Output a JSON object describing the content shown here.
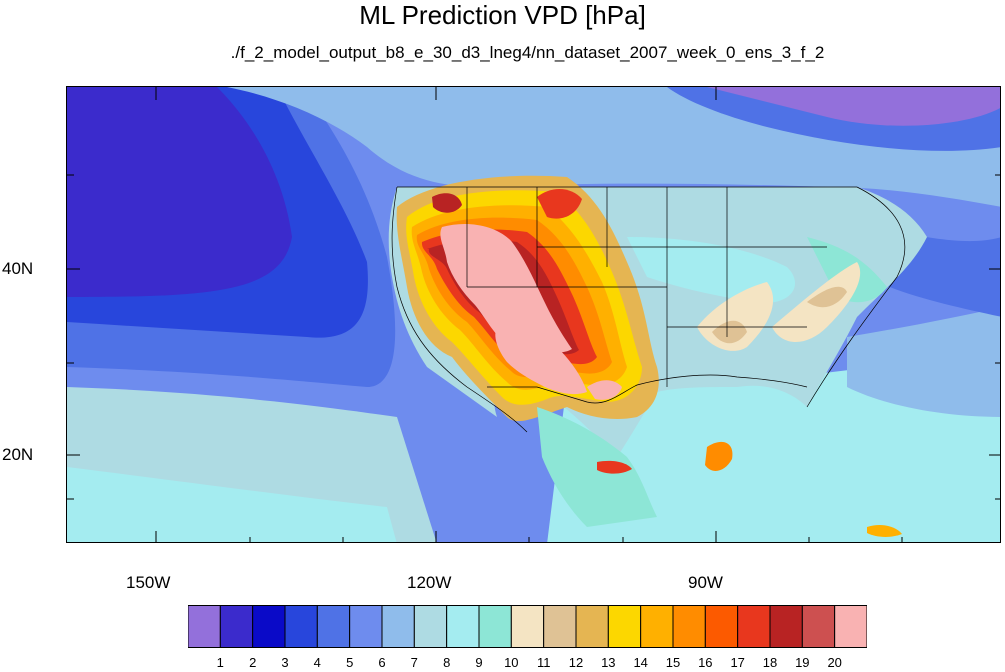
{
  "title": "ML Prediction VPD [hPa]",
  "subtitle": "./f_2_model_output_b8_e_30_d3_lneg4/nn_dataset_2007_week_0_ens_3_f_2",
  "lon_ticks": [
    "150W",
    "120W",
    "90W"
  ],
  "lat_ticks": [
    "40N",
    "20N"
  ],
  "colorbar": {
    "labels": [
      "1",
      "2",
      "3",
      "4",
      "5",
      "6",
      "7",
      "8",
      "9",
      "10",
      "11",
      "12",
      "13",
      "14",
      "15",
      "16",
      "17",
      "18",
      "19",
      "20"
    ],
    "colors": [
      "#9370db",
      "#3b2bcc",
      "#0a0ac8",
      "#2846dc",
      "#4f72e6",
      "#6e8cee",
      "#8fbceb",
      "#aedbe3",
      "#a4ecf0",
      "#8de6d6",
      "#f4e4c3",
      "#dfc295",
      "#e5b552",
      "#fcd700",
      "#ffb000",
      "#ff8c00",
      "#fc5a00",
      "#e8371e",
      "#b82323",
      "#cd5050",
      "#f9b2b2"
    ]
  },
  "projection": {
    "lon_min": -160,
    "lon_max": -60,
    "lat_min": 11,
    "lat_max": 60
  }
}
